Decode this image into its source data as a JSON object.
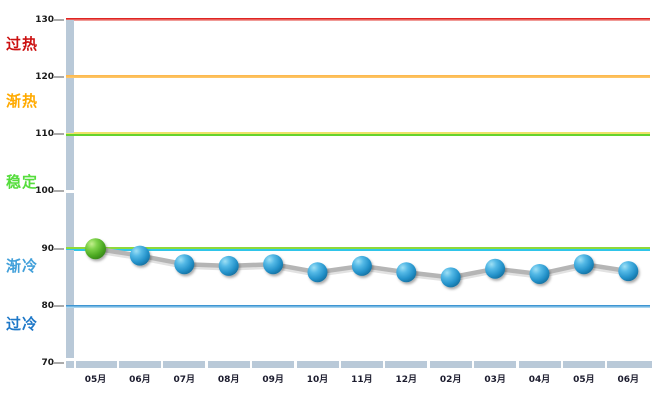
{
  "chart_data": {
    "type": "line",
    "title": "",
    "xlabel": "",
    "ylabel": "",
    "categories": [
      "05月",
      "06月",
      "07月",
      "08月",
      "09月",
      "10月",
      "11月",
      "12月",
      "02月",
      "03月",
      "04月",
      "05月",
      "06月"
    ],
    "values": [
      90,
      88.8,
      87.3,
      87.0,
      87.3,
      85.9,
      87.0,
      85.9,
      85.0,
      86.5,
      85.6,
      87.3,
      86.1
    ],
    "ylim": [
      70,
      130
    ],
    "yticks": [
      130,
      120,
      110,
      100,
      90,
      80,
      70
    ],
    "grid": false,
    "legend": "none",
    "zones": [
      {
        "label": "过热",
        "label_color": "#cc1111",
        "line_value": 130,
        "line_colors": [
          "#e02422",
          "#f09b97"
        ]
      },
      {
        "label": "渐热",
        "label_color": "#ffaa00",
        "line_value": 120,
        "line_colors": [
          "#fdb94e",
          "#fdc567"
        ]
      },
      {
        "label": "稳定",
        "label_color": "#55dd3c",
        "line_value": 110,
        "line_colors": [
          "#efe26a",
          "#65d32e"
        ]
      },
      {
        "label": "渐冷",
        "label_color": "#42a0da",
        "line_value": 90,
        "line_colors": [
          "#8ed93a",
          "#2fc5e9"
        ]
      },
      {
        "label": "过冷",
        "label_color": "#1e78c8",
        "line_value": 80,
        "line_colors": [
          "#3e96d3",
          "#a9d5ef"
        ]
      }
    ],
    "series_line_color": "#b5b5b5",
    "series_line_shadow_color": "#e2e2e2",
    "axis_bar_color": "#b9c9d8",
    "marker_gradients": {
      "blue": [
        "#9fe0f5",
        "#54b9e6",
        "#2391c9",
        "#156f9e"
      ],
      "green": [
        "#c4ef8e",
        "#7ed24a",
        "#4ba821",
        "#36841a"
      ]
    },
    "first_point_marker": "green",
    "other_points_marker": "blue"
  }
}
